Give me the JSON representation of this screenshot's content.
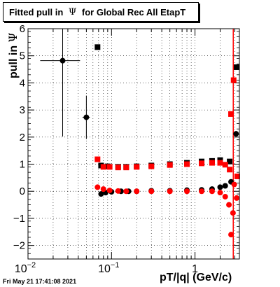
{
  "title": {
    "prefix": "Fitted pull in ",
    "symbol": "Ψ",
    "suffix": " for Global Rec All EtapT"
  },
  "timestamp": "Fri May 21 17:41:08 2021",
  "chart_data": {
    "type": "scatter",
    "title": "Fitted pull in Ψ for Global Rec All EtapT",
    "xlabel": "pT/|q| (GeV/c)",
    "ylabel": "pull in Ψ",
    "ylabel_symbol": "Ψ",
    "x_scale": "log",
    "xlim": [
      0.01,
      3.4
    ],
    "ylim": [
      -2.5,
      6
    ],
    "grid": true,
    "x_tick_labels": [
      {
        "base": "10",
        "exp": "-2",
        "value": 0.01
      },
      {
        "base": "10",
        "exp": "-1",
        "value": 0.1
      },
      {
        "base": "1",
        "exp": "",
        "value": 1
      }
    ],
    "y_ticks": [
      -2,
      -1,
      0,
      1,
      2,
      3,
      4,
      5,
      6
    ],
    "series": [
      {
        "marker": "circle",
        "color": "#000000",
        "points": [
          {
            "x": 0.026,
            "y": 4.82,
            "xerr": [
              0.012,
              0.016
            ],
            "yerr": 2.8
          },
          {
            "x": 0.05,
            "y": 2.73,
            "xerr": [
              0.005,
              0.005
            ],
            "yerr": 0.8
          },
          {
            "x": 0.075,
            "y": -0.1
          },
          {
            "x": 0.085,
            "y": -0.05
          },
          {
            "x": 0.1,
            "y": -0.02
          },
          {
            "x": 0.13,
            "y": 0.0
          },
          {
            "x": 0.16,
            "y": 0.0
          },
          {
            "x": 0.2,
            "y": 0.0
          },
          {
            "x": 0.3,
            "y": 0.02
          },
          {
            "x": 0.5,
            "y": 0.02
          },
          {
            "x": 0.8,
            "y": 0.04
          },
          {
            "x": 1.2,
            "y": 0.05
          },
          {
            "x": 1.6,
            "y": 0.08
          },
          {
            "x": 2.0,
            "y": 0.15
          },
          {
            "x": 2.3,
            "y": 0.2
          },
          {
            "x": 2.7,
            "y": 0.35
          },
          {
            "x": 3.1,
            "y": 2.12
          }
        ]
      },
      {
        "marker": "square",
        "color": "#000000",
        "points": [
          {
            "x": 0.068,
            "y": 5.32
          },
          {
            "x": 0.075,
            "y": 0.95
          },
          {
            "x": 0.09,
            "y": 0.92
          },
          {
            "x": 0.12,
            "y": 0.9
          },
          {
            "x": 0.15,
            "y": 0.9
          },
          {
            "x": 0.2,
            "y": 0.92
          },
          {
            "x": 0.3,
            "y": 0.95
          },
          {
            "x": 0.5,
            "y": 1.0
          },
          {
            "x": 0.8,
            "y": 1.05
          },
          {
            "x": 1.2,
            "y": 1.1
          },
          {
            "x": 1.6,
            "y": 1.12
          },
          {
            "x": 2.0,
            "y": 1.15
          },
          {
            "x": 2.6,
            "y": 1.1
          },
          {
            "x": 3.15,
            "y": 4.58
          }
        ]
      },
      {
        "marker": "circle",
        "color": "#ff0000",
        "points": [
          {
            "x": 0.068,
            "y": 0.15
          },
          {
            "x": 0.08,
            "y": 0.08
          },
          {
            "x": 0.095,
            "y": 0.03
          },
          {
            "x": 0.12,
            "y": 0.01
          },
          {
            "x": 0.15,
            "y": 0.0
          },
          {
            "x": 0.2,
            "y": 0.0
          },
          {
            "x": 0.3,
            "y": 0.0
          },
          {
            "x": 0.5,
            "y": 0.0
          },
          {
            "x": 0.8,
            "y": 0.0
          },
          {
            "x": 1.2,
            "y": 0.0
          },
          {
            "x": 1.6,
            "y": 0.0
          },
          {
            "x": 2.0,
            "y": -0.05
          },
          {
            "x": 2.3,
            "y": -0.2
          },
          {
            "x": 2.55,
            "y": -0.5
          },
          {
            "x": 2.7,
            "y": -1.6
          },
          {
            "x": 2.85,
            "y": -0.8
          },
          {
            "x": 2.95,
            "y": 0.25
          },
          {
            "x": 3.15,
            "y": -0.25
          }
        ]
      },
      {
        "marker": "square",
        "color": "#ff0000",
        "points": [
          {
            "x": 0.068,
            "y": 1.18
          },
          {
            "x": 0.08,
            "y": 0.9
          },
          {
            "x": 0.095,
            "y": 0.9
          },
          {
            "x": 0.12,
            "y": 0.88
          },
          {
            "x": 0.15,
            "y": 0.88
          },
          {
            "x": 0.2,
            "y": 0.9
          },
          {
            "x": 0.3,
            "y": 0.92
          },
          {
            "x": 0.5,
            "y": 0.97
          },
          {
            "x": 0.8,
            "y": 1.0
          },
          {
            "x": 1.2,
            "y": 1.03
          },
          {
            "x": 1.6,
            "y": 1.05
          },
          {
            "x": 2.0,
            "y": 1.05
          },
          {
            "x": 2.3,
            "y": 0.98
          },
          {
            "x": 2.6,
            "y": 0.8
          },
          {
            "x": 2.7,
            "y": 2.85
          },
          {
            "x": 2.9,
            "y": 4.1
          },
          {
            "x": 3.2,
            "y": 0.55
          }
        ]
      }
    ],
    "vertical_lines": [
      {
        "x": 2.87,
        "color": "#ff0000"
      }
    ]
  }
}
